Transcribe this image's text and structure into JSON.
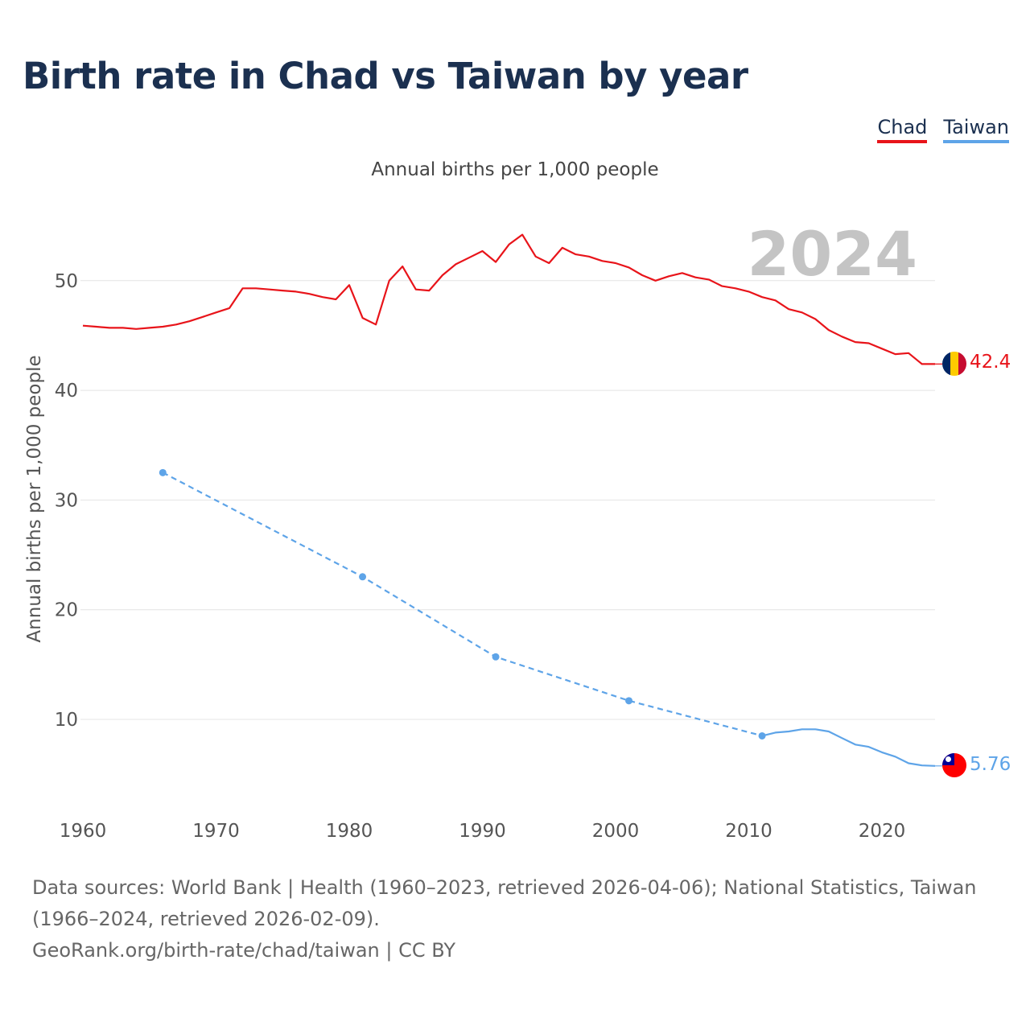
{
  "title": "Birth rate in Chad vs Taiwan by year",
  "legend": [
    {
      "label": "Chad",
      "color": "#e8141a"
    },
    {
      "label": "Taiwan",
      "color": "#5ea4e8"
    }
  ],
  "subtitle": "Annual births per 1,000 people",
  "year_watermark": "2024",
  "footer": {
    "sources": "Data sources: World Bank | Health (1960–2023, retrieved 2026-04-06); National Statistics, Taiwan (1966–2024, retrieved 2026-02-09).",
    "credit": "GeoRank.org/birth-rate/chad/taiwan | CC BY"
  },
  "chart_data": {
    "type": "line",
    "title": "Birth rate in Chad vs Taiwan by year",
    "xlabel": "",
    "ylabel": "Annual births per 1,000 people",
    "xlim": [
      1960,
      2024
    ],
    "ylim": [
      0,
      55
    ],
    "x_ticks": [
      1960,
      1970,
      1980,
      1990,
      2000,
      2010,
      2020
    ],
    "y_ticks": [
      10,
      20,
      30,
      40,
      50
    ],
    "grid": true,
    "series": [
      {
        "name": "Chad",
        "color": "#e8141a",
        "end_label": "42.4",
        "points": [
          [
            1960,
            45.9
          ],
          [
            1961,
            45.8
          ],
          [
            1962,
            45.7
          ],
          [
            1963,
            45.7
          ],
          [
            1964,
            45.6
          ],
          [
            1965,
            45.7
          ],
          [
            1966,
            45.8
          ],
          [
            1967,
            46.0
          ],
          [
            1968,
            46.3
          ],
          [
            1969,
            46.7
          ],
          [
            1970,
            47.1
          ],
          [
            1971,
            47.5
          ],
          [
            1972,
            49.3
          ],
          [
            1973,
            49.3
          ],
          [
            1974,
            49.2
          ],
          [
            1975,
            49.1
          ],
          [
            1976,
            49.0
          ],
          [
            1977,
            48.8
          ],
          [
            1978,
            48.5
          ],
          [
            1979,
            48.3
          ],
          [
            1980,
            49.6
          ],
          [
            1981,
            46.6
          ],
          [
            1982,
            46.0
          ],
          [
            1983,
            50.0
          ],
          [
            1984,
            51.3
          ],
          [
            1985,
            49.2
          ],
          [
            1986,
            49.1
          ],
          [
            1987,
            50.5
          ],
          [
            1988,
            51.5
          ],
          [
            1989,
            52.1
          ],
          [
            1990,
            52.7
          ],
          [
            1991,
            51.7
          ],
          [
            1992,
            53.3
          ],
          [
            1993,
            54.2
          ],
          [
            1994,
            52.2
          ],
          [
            1995,
            51.6
          ],
          [
            1996,
            53.0
          ],
          [
            1997,
            52.4
          ],
          [
            1998,
            52.2
          ],
          [
            1999,
            51.8
          ],
          [
            2000,
            51.6
          ],
          [
            2001,
            51.2
          ],
          [
            2002,
            50.5
          ],
          [
            2003,
            50.0
          ],
          [
            2004,
            50.4
          ],
          [
            2005,
            50.7
          ],
          [
            2006,
            50.3
          ],
          [
            2007,
            50.1
          ],
          [
            2008,
            49.5
          ],
          [
            2009,
            49.3
          ],
          [
            2010,
            49.0
          ],
          [
            2011,
            48.5
          ],
          [
            2012,
            48.2
          ],
          [
            2013,
            47.4
          ],
          [
            2014,
            47.1
          ],
          [
            2015,
            46.5
          ],
          [
            2016,
            45.5
          ],
          [
            2017,
            44.9
          ],
          [
            2018,
            44.4
          ],
          [
            2019,
            44.3
          ],
          [
            2020,
            43.8
          ],
          [
            2021,
            43.3
          ],
          [
            2022,
            43.4
          ],
          [
            2023,
            42.4
          ],
          [
            2024,
            42.4
          ]
        ]
      },
      {
        "name": "Taiwan",
        "color": "#5ea4e8",
        "end_label": "5.76",
        "sparse_points": [
          [
            1966,
            32.5
          ],
          [
            1981,
            23.0
          ],
          [
            1991,
            15.7
          ],
          [
            2001,
            11.7
          ],
          [
            2011,
            8.5
          ]
        ],
        "points": [
          [
            2011,
            8.5
          ],
          [
            2012,
            8.8
          ],
          [
            2013,
            8.9
          ],
          [
            2014,
            9.1
          ],
          [
            2015,
            9.1
          ],
          [
            2016,
            8.9
          ],
          [
            2017,
            8.3
          ],
          [
            2018,
            7.7
          ],
          [
            2019,
            7.5
          ],
          [
            2020,
            7.0
          ],
          [
            2021,
            6.6
          ],
          [
            2022,
            6.0
          ],
          [
            2023,
            5.8
          ],
          [
            2024,
            5.76
          ]
        ]
      }
    ]
  }
}
